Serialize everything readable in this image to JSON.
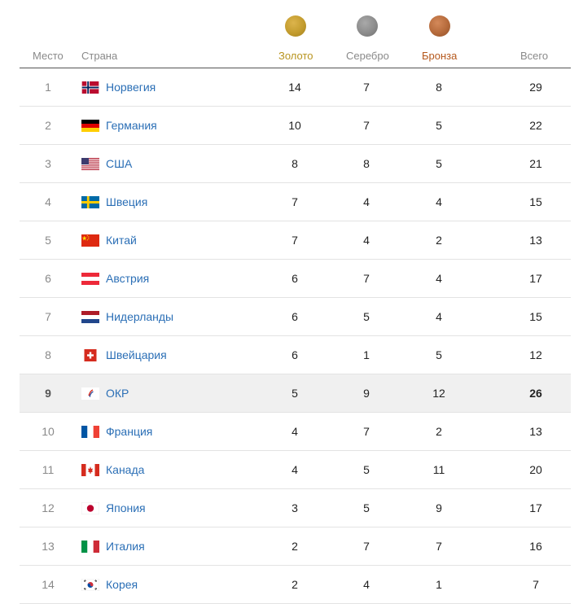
{
  "columns": {
    "place": "Место",
    "country": "Страна",
    "gold": "Золото",
    "silver": "Серебро",
    "bronze": "Бронза",
    "total": "Всего"
  },
  "colors": {
    "gold": "#b8941f",
    "bronze": "#b5581c",
    "link": "#2b6fb6"
  },
  "rows": [
    {
      "place": "1",
      "country": "Норвегия",
      "flag": "norway-flag-icon",
      "gold": "14",
      "silver": "7",
      "bronze": "8",
      "total": "29"
    },
    {
      "place": "2",
      "country": "Германия",
      "flag": "germany-flag-icon",
      "gold": "10",
      "silver": "7",
      "bronze": "5",
      "total": "22"
    },
    {
      "place": "3",
      "country": "США",
      "flag": "usa-flag-icon",
      "gold": "8",
      "silver": "8",
      "bronze": "5",
      "total": "21"
    },
    {
      "place": "4",
      "country": "Швеция",
      "flag": "sweden-flag-icon",
      "gold": "7",
      "silver": "4",
      "bronze": "4",
      "total": "15"
    },
    {
      "place": "5",
      "country": "Китай",
      "flag": "china-flag-icon",
      "gold": "7",
      "silver": "4",
      "bronze": "2",
      "total": "13"
    },
    {
      "place": "6",
      "country": "Австрия",
      "flag": "austria-flag-icon",
      "gold": "6",
      "silver": "7",
      "bronze": "4",
      "total": "17"
    },
    {
      "place": "7",
      "country": "Нидерланды",
      "flag": "netherlands-flag-icon",
      "gold": "6",
      "silver": "5",
      "bronze": "4",
      "total": "15"
    },
    {
      "place": "8",
      "country": "Швейцария",
      "flag": "switzerland-flag-icon",
      "gold": "6",
      "silver": "1",
      "bronze": "5",
      "total": "12"
    },
    {
      "place": "9",
      "country": "ОКР",
      "flag": "roc-flag-icon",
      "gold": "5",
      "silver": "9",
      "bronze": "12",
      "total": "26",
      "highlight": true
    },
    {
      "place": "10",
      "country": "Франция",
      "flag": "france-flag-icon",
      "gold": "4",
      "silver": "7",
      "bronze": "2",
      "total": "13"
    },
    {
      "place": "11",
      "country": "Канада",
      "flag": "canada-flag-icon",
      "gold": "4",
      "silver": "5",
      "bronze": "11",
      "total": "20"
    },
    {
      "place": "12",
      "country": "Япония",
      "flag": "japan-flag-icon",
      "gold": "3",
      "silver": "5",
      "bronze": "9",
      "total": "17"
    },
    {
      "place": "13",
      "country": "Италия",
      "flag": "italy-flag-icon",
      "gold": "2",
      "silver": "7",
      "bronze": "7",
      "total": "16"
    },
    {
      "place": "14",
      "country": "Корея",
      "flag": "korea-flag-icon",
      "gold": "2",
      "silver": "4",
      "bronze": "1",
      "total": "7"
    }
  ]
}
